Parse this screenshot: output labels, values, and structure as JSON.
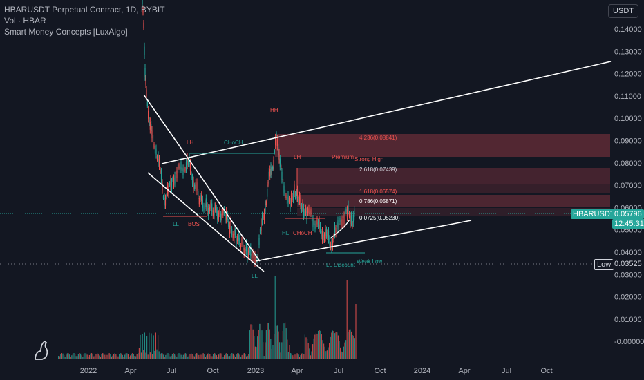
{
  "legend": {
    "title": "HBARUSDT Perpetual Contract, 1D, BYBIT",
    "vol": "Vol · HBAR",
    "indicator": "Smart Money Concepts [LuxAlgo]"
  },
  "currency": "USDT",
  "price_axis": [
    "0.14000",
    "0.13000",
    "0.12000",
    "0.11000",
    "0.10000",
    "0.09000",
    "0.08000",
    "0.07000",
    "0.06000",
    "0.05000",
    "0.04000",
    "0.03000",
    "0.02000",
    "0.01000",
    "-0.00000"
  ],
  "time_axis": [
    "2022",
    "Apr",
    "Jul",
    "Oct",
    "2023",
    "Apr",
    "Jul",
    "Oct",
    "2024",
    "Apr",
    "Jul",
    "Oct"
  ],
  "tags": {
    "symbol": "HBARUSDT.P",
    "last_price": "0.05796",
    "countdown": "12:45:31",
    "low_label": "Low",
    "low_value": "0.03525"
  },
  "annotations": {
    "fib_4236": "4.236(0.08841)",
    "fib_2618": "2.618(0.07439)",
    "fib_1618": "1.618(0.06574)",
    "fib_0786": "0.786(0.05871)",
    "fib_0": "0.0725(0.05230)",
    "hh": "HH",
    "lh": "LH",
    "choch_top": "CHoCH",
    "lh2": "LH",
    "premium": "Premium",
    "strong_high": "Strong High",
    "bos": "BOS",
    "ll_bottom": "LL",
    "hl": "HL",
    "choch_mid": "CHoCH",
    "ll": "LL",
    "discount": "LL Discount",
    "weak_low": "Weak Low",
    "ll2": "LL"
  },
  "colors": {
    "background": "#131722",
    "up": "#26a69a",
    "down": "#ef5350",
    "zone": "#f7525f"
  }
}
